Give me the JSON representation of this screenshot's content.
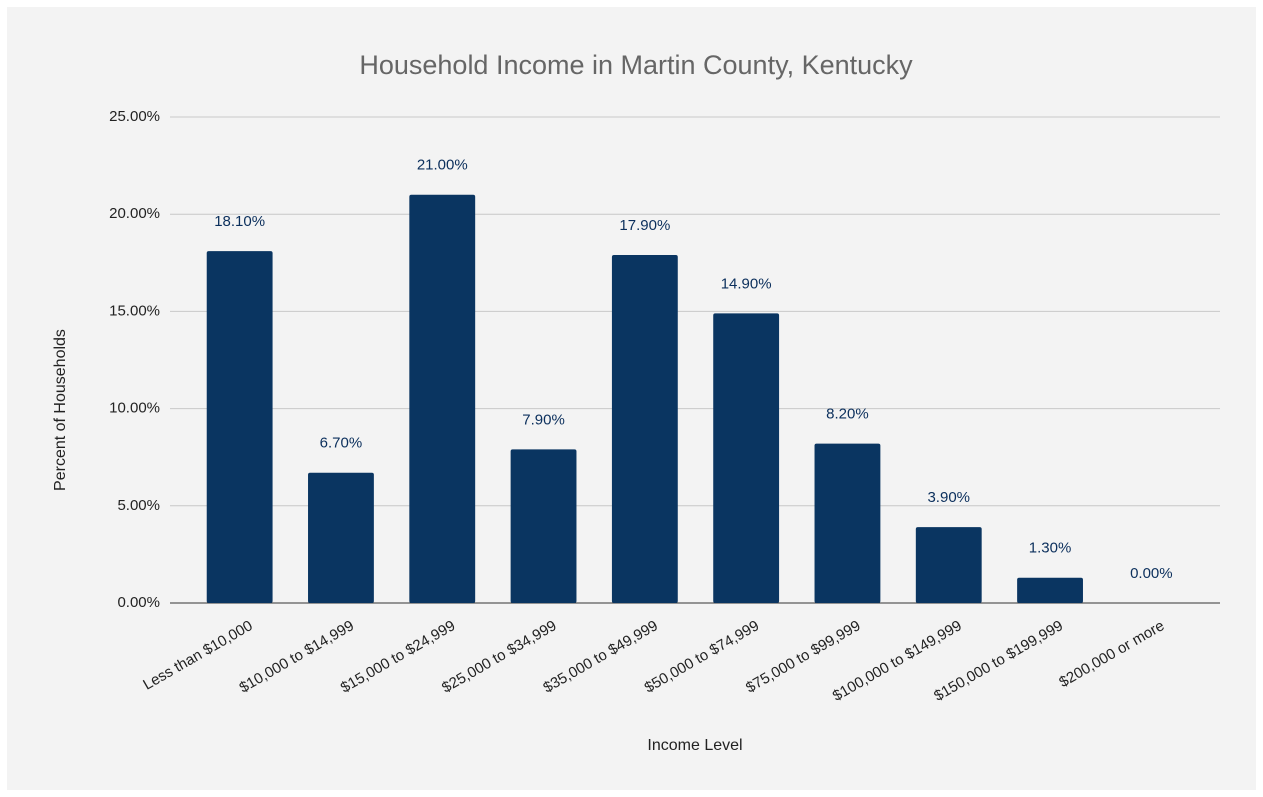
{
  "chart_data": {
    "type": "bar",
    "title": "Household Income in Martin County, Kentucky",
    "x_label": "Income Level",
    "y_label": "Percent of Households",
    "categories": [
      "Less than $10,000",
      "$10,000 to $14,999",
      "$15,000 to $24,999",
      "$25,000 to $34,999",
      "$35,000 to $49,999",
      "$50,000 to $74,999",
      "$75,000 to $99,999",
      "$100,000 to $149,999",
      "$150,000 to $199,999",
      "$200,000 or more"
    ],
    "values": [
      18.1,
      6.7,
      21.0,
      7.9,
      17.9,
      14.9,
      8.2,
      3.9,
      1.3,
      0.0
    ],
    "value_labels": [
      "18.10%",
      "6.70%",
      "21.00%",
      "7.90%",
      "17.90%",
      "14.90%",
      "8.20%",
      "3.90%",
      "1.30%",
      "0.00%"
    ],
    "color": "#0a3561",
    "ylim": [
      0,
      25
    ],
    "yticks": [
      {
        "value": 0,
        "label": "0.00%"
      },
      {
        "value": 5,
        "label": "5.00%"
      },
      {
        "value": 10,
        "label": "10.00%"
      },
      {
        "value": 15,
        "label": "15.00%"
      },
      {
        "value": 20,
        "label": "20.00%"
      },
      {
        "value": 25,
        "label": "25.00%"
      }
    ],
    "grid": true
  }
}
